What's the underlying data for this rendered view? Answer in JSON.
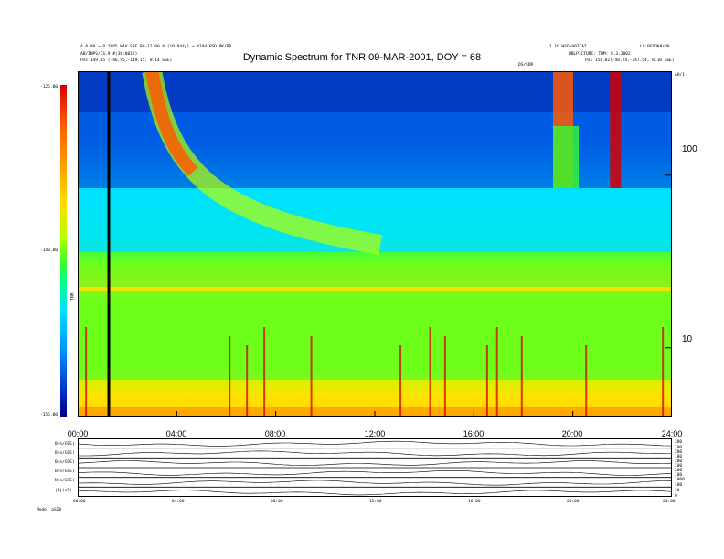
{
  "header": {
    "left_line1": "4.0.08 + 0.2005 WAV.SRF.RG-12.00.0 (10.04fy) +.4104.PSD.BK/BR",
    "left_line2": "AB/INPS/CS.9 #(3b:0012)",
    "left_line3": "Pos    149.05 (-46.95,-149.15, 8.14 GSE)",
    "right_line1": "1.10 WSD-002CAZ",
    "right_line2": "WBLPICTURE: THM: 8.3.2002",
    "right_line3": "Pos    154.82(-48.24,-147.54, 8.10 GSE)",
    "far_right": "LS:BFOOK#s00",
    "mid_label": "DS/SDR",
    "corner_label": "AH/1"
  },
  "colorbar": {
    "ticks": [
      "-125.00",
      "-140.00",
      "-155.00"
    ],
    "unit_label": "TNR"
  },
  "footer": {
    "left": "Mode:  aSI8"
  },
  "lower_axis": {
    "left_labels": [
      "B(n/GSE)",
      "B(n/GSE)",
      "B(n/GSE)",
      "B(n/GSE)",
      "N(n/GSE)",
      "|B|(nT)"
    ],
    "right_labels": [
      "200",
      "100",
      "200",
      "100",
      "200",
      "100",
      "200",
      "100",
      "1000",
      "100",
      "10",
      "0"
    ],
    "x_ticks": [
      "00:00",
      "04:00",
      "08:00",
      "12:00",
      "16:00",
      "20:00",
      "24:00"
    ]
  },
  "chart_data": {
    "type": "heatmap",
    "title": "Dynamic Spectrum for TNR 09-MAR-2001, DOY = 68",
    "x_ticks": [
      "00:00",
      "04:00",
      "08:00",
      "12:00",
      "16:00",
      "20:00",
      "24:00"
    ],
    "xlim_hours": [
      0,
      24
    ],
    "y_scale": "log",
    "y_ticks": [
      "100",
      "10"
    ],
    "y_tick_values": [
      100,
      10
    ],
    "ylim": [
      4,
      400
    ],
    "color_scale": {
      "min": -155.0,
      "max": -125.0,
      "ticks": [
        -125.0,
        -140.0,
        -155.0
      ]
    },
    "features": {
      "data_gap_hour": 1.2,
      "type3_burst_start_hour": 3.0,
      "band_hour": 19.2,
      "band2_hour": 21.5
    },
    "colors": [
      "#000080",
      "#0030d0",
      "#0090ff",
      "#00e0ff",
      "#00ff90",
      "#30ff30",
      "#b8ff00",
      "#ffe000",
      "#ff9c00",
      "#ff5a00",
      "#d40000"
    ]
  }
}
